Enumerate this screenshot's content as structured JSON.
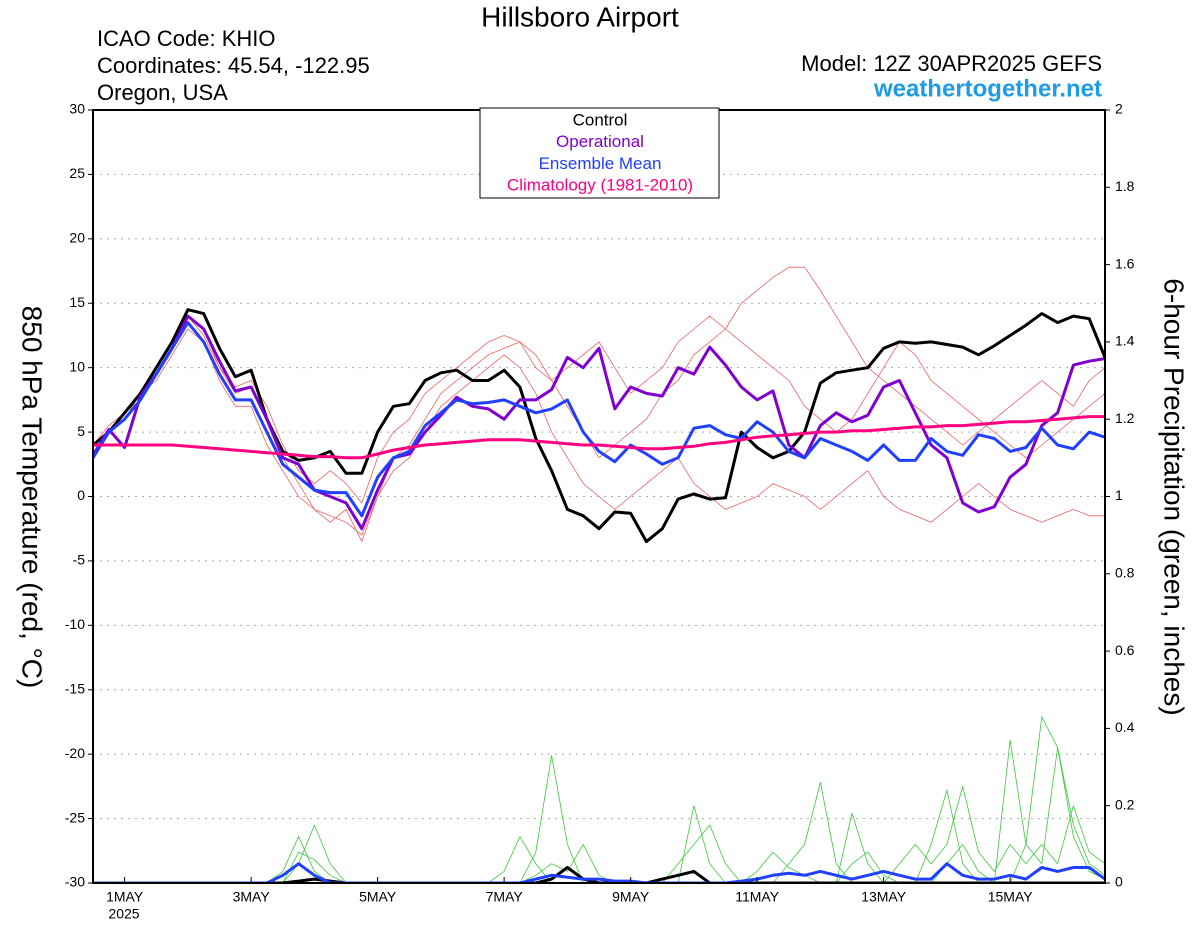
{
  "chart_data": {
    "type": "line",
    "title": "Hillsboro Airport",
    "info_lines": [
      "ICAO Code: KHIO",
      "Coordinates: 45.54, -122.95",
      "Oregon, USA"
    ],
    "model": "Model: 12Z 30APR2025 GEFS",
    "source": "weathertogether.net",
    "y_label": "850 hPa Temperature (red, °C)",
    "y2_label": "6-hour Precipitation (green, inches)",
    "x_year_label": "2025",
    "grid": true,
    "xlim": [
      0.5,
      16.5
    ],
    "xticks": [
      {
        "value": 1,
        "label": "1MAY"
      },
      {
        "value": 3,
        "label": "3MAY"
      },
      {
        "value": 5,
        "label": "5MAY"
      },
      {
        "value": 7,
        "label": "7MAY"
      },
      {
        "value": 9,
        "label": "9MAY"
      },
      {
        "value": 11,
        "label": "11MAY"
      },
      {
        "value": 13,
        "label": "13MAY"
      },
      {
        "value": 15,
        "label": "15MAY"
      }
    ],
    "ylim": [
      -30,
      30
    ],
    "yticks": [
      -30,
      -25,
      -20,
      -15,
      -10,
      -5,
      0,
      5,
      10,
      15,
      20,
      25,
      30
    ],
    "y2lim": [
      0,
      2
    ],
    "y2ticks": [
      0,
      0.2,
      0.4,
      0.6,
      0.8,
      1,
      1.2,
      1.4,
      1.6,
      1.8,
      2
    ],
    "x": [
      0.5,
      0.75,
      1,
      1.25,
      1.5,
      1.75,
      2,
      2.25,
      2.5,
      2.75,
      3,
      3.25,
      3.5,
      3.75,
      4,
      4.25,
      4.5,
      4.75,
      5,
      5.25,
      5.5,
      5.75,
      6,
      6.25,
      6.5,
      6.75,
      7,
      7.25,
      7.5,
      7.75,
      8,
      8.25,
      8.5,
      8.75,
      9,
      9.25,
      9.5,
      9.75,
      10,
      10.25,
      10.5,
      10.75,
      11,
      11.25,
      11.5,
      11.75,
      12,
      12.25,
      12.5,
      12.75,
      13,
      13.25,
      13.5,
      13.75,
      14,
      14.25,
      14.5,
      14.75,
      15,
      15.25,
      15.5,
      15.75,
      16,
      16.25,
      16.5
    ],
    "series": [
      {
        "color": "#f06060",
        "values": [
          3,
          5,
          6.5,
          8,
          10,
          12,
          14,
          13,
          10,
          8,
          8.5,
          6,
          3,
          1,
          -1,
          -1.5,
          -2,
          -3,
          0,
          3,
          4,
          6,
          8,
          9,
          10,
          11,
          11.5,
          12,
          11,
          9,
          7,
          5,
          3,
          4,
          5,
          6,
          8,
          9,
          11,
          12,
          13,
          15,
          16,
          17,
          17.8,
          17.8,
          16,
          14,
          12,
          10,
          9,
          8,
          7,
          6,
          5,
          4,
          5,
          6,
          7,
          8,
          9,
          8,
          7,
          9,
          10
        ]
      },
      {
        "color": "#f06060",
        "values": [
          3,
          5,
          6,
          8,
          9,
          11,
          13,
          12,
          9,
          7,
          7,
          4,
          2,
          0,
          -1,
          -2,
          -1,
          -3.5,
          0,
          2,
          3,
          5,
          7,
          8,
          9,
          10,
          11,
          10,
          8,
          5,
          3,
          1,
          0,
          -1,
          0,
          1,
          2,
          3,
          1,
          0,
          -1,
          -0.5,
          0,
          1,
          0.5,
          0,
          -1,
          0,
          1,
          2,
          0,
          -1,
          -1.5,
          -2,
          -1,
          0,
          1,
          0,
          -1,
          -1.5,
          -2,
          -1.5,
          -1,
          -1.5,
          -1.5
        ]
      },
      {
        "color": "#f06060",
        "values": [
          4,
          5.5,
          6.5,
          7.5,
          9.5,
          11.5,
          14,
          12.5,
          10,
          8.5,
          9,
          7,
          4,
          2,
          1,
          2,
          1,
          -0.5,
          3,
          5,
          6,
          8,
          9,
          10,
          11,
          12,
          12.5,
          12,
          10,
          9,
          10,
          11,
          12,
          10,
          8,
          9,
          10,
          12,
          13,
          14,
          13,
          12,
          11,
          10,
          9,
          7,
          6,
          5,
          6,
          8,
          10,
          12,
          11,
          9,
          8,
          7,
          6,
          5,
          4,
          3,
          4,
          5,
          6,
          7,
          8
        ]
      },
      {
        "color": "#3cc83c",
        "axis": "y2",
        "values": [
          0,
          0,
          0,
          0,
          0,
          0,
          0,
          0,
          0,
          0,
          0,
          0,
          0.03,
          0.12,
          0.03,
          0,
          0,
          0,
          0,
          0,
          0,
          0,
          0,
          0,
          0,
          0,
          0,
          0,
          0.08,
          0.33,
          0.1,
          0,
          0,
          0,
          0,
          0,
          0,
          0,
          0,
          0,
          0,
          0,
          0,
          0,
          0.05,
          0.1,
          0.26,
          0.05,
          0,
          0,
          0,
          0,
          0,
          0.1,
          0.24,
          0.05,
          0,
          0,
          0,
          0.1,
          0.43,
          0.35,
          0.15,
          0.05,
          0.02
        ]
      },
      {
        "color": "#3cc83c",
        "axis": "y2",
        "values": [
          0,
          0,
          0,
          0,
          0,
          0,
          0,
          0,
          0,
          0,
          0,
          0,
          0,
          0.05,
          0.15,
          0.05,
          0,
          0,
          0,
          0,
          0,
          0,
          0,
          0,
          0,
          0,
          0.03,
          0.12,
          0.05,
          0,
          0,
          0,
          0,
          0,
          0,
          0,
          0,
          0.05,
          0.1,
          0.15,
          0.05,
          0,
          0,
          0,
          0,
          0,
          0,
          0,
          0.05,
          0.08,
          0.02,
          0,
          0,
          0,
          0.05,
          0.1,
          0.03,
          0,
          0.37,
          0.1,
          0.05,
          0.35,
          0.12,
          0.03,
          0.01
        ]
      },
      {
        "color": "#3cc83c",
        "axis": "y2",
        "values": [
          0,
          0,
          0,
          0,
          0,
          0,
          0,
          0,
          0,
          0,
          0,
          0,
          0,
          0.08,
          0.06,
          0.02,
          0,
          0,
          0,
          0,
          0,
          0,
          0,
          0,
          0,
          0,
          0,
          0,
          0.02,
          0.05,
          0.03,
          0.1,
          0.02,
          0,
          0,
          0,
          0,
          0,
          0.2,
          0.05,
          0,
          0,
          0.03,
          0.08,
          0.04,
          0.02,
          0,
          0,
          0.18,
          0.05,
          0,
          0.05,
          0.1,
          0.05,
          0.1,
          0.25,
          0.08,
          0.03,
          0.1,
          0.05,
          0.1,
          0.05,
          0.2,
          0.08,
          0.05
        ]
      },
      {
        "color": "#000000",
        "axis": "y2",
        "values": [
          0,
          0,
          0,
          0,
          0,
          0,
          0,
          0,
          0,
          0,
          0,
          0,
          0,
          0.005,
          0.01,
          0.005,
          0,
          0,
          0,
          0,
          0,
          0,
          0,
          0,
          0,
          0,
          0,
          0,
          0,
          0.01,
          0.04,
          0.01,
          0,
          0,
          0,
          0,
          0.01,
          0.02,
          0.03,
          0,
          0,
          0,
          0,
          0,
          0,
          0,
          0,
          0,
          0,
          0,
          0,
          0,
          0,
          0,
          0,
          0,
          0,
          0,
          0,
          0,
          0,
          0,
          0,
          0,
          0
        ]
      },
      {
        "color": "#2040ff",
        "axis": "y2",
        "values": [
          0,
          0,
          0,
          0,
          0,
          0,
          0,
          0,
          0,
          0,
          0,
          0,
          0.02,
          0.05,
          0.02,
          0,
          0,
          0,
          0,
          0,
          0,
          0,
          0,
          0,
          0,
          0,
          0,
          0,
          0.01,
          0.02,
          0.015,
          0.01,
          0.01,
          0.005,
          0.005,
          0,
          0,
          0,
          0,
          0,
          0,
          0.005,
          0.01,
          0.02,
          0.025,
          0.02,
          0.03,
          0.02,
          0.01,
          0.02,
          0.03,
          0.02,
          0.01,
          0.01,
          0.05,
          0.02,
          0.01,
          0.01,
          0.02,
          0.01,
          0.04,
          0.03,
          0.04,
          0.04,
          0.01
        ]
      },
      {
        "name": "Control",
        "color": "#000000",
        "values": [
          4,
          5,
          6.5,
          8,
          10,
          12,
          14.5,
          14.2,
          11.5,
          9.3,
          9.8,
          6,
          3.5,
          2.8,
          3,
          3.5,
          1.8,
          1.8,
          5,
          7,
          7.2,
          9,
          9.6,
          9.8,
          9,
          9,
          9.8,
          8.5,
          4.5,
          2,
          -1,
          -1.5,
          -2.5,
          -1.2,
          -1.3,
          -3.5,
          -2.5,
          -0.2,
          0.2,
          -0.2,
          -0.1,
          5,
          3.8,
          3,
          3.5,
          5,
          8.8,
          9.6,
          9.8,
          10,
          11.5,
          12,
          11.9,
          12,
          11.8,
          11.6,
          11,
          11.7,
          12.5,
          13.3,
          14.2,
          13.5,
          14,
          13.8,
          10.8
        ]
      },
      {
        "name": "Operational",
        "color": "#8000d0",
        "values": [
          3.2,
          5.2,
          3.8,
          7.8,
          9.5,
          11.5,
          14,
          13,
          10.5,
          8.2,
          8.5,
          6,
          3,
          2.5,
          0.5,
          0,
          -0.5,
          -2.5,
          0.5,
          3,
          3.3,
          5,
          6.3,
          7.7,
          7,
          6.8,
          6,
          7.5,
          7.5,
          8.3,
          10.8,
          10,
          11.5,
          6.8,
          8.5,
          8,
          7.8,
          10,
          9.5,
          11.6,
          10.2,
          8.5,
          7.5,
          8.2,
          4,
          3,
          5.5,
          6.5,
          5.8,
          6.3,
          8.5,
          9,
          6.5,
          4,
          3,
          -0.5,
          -1.2,
          -0.8,
          1.5,
          2.5,
          5.5,
          6.5,
          10.2,
          10.5,
          10.7
        ]
      },
      {
        "name": "Ensemble Mean",
        "color": "#2040ff",
        "values": [
          3,
          5,
          6,
          7.5,
          9.5,
          11.5,
          13.5,
          12,
          9.5,
          7.5,
          7.5,
          5,
          2.5,
          1.5,
          0.5,
          0.3,
          0.3,
          -1.5,
          1.5,
          3,
          3.5,
          5.5,
          6.5,
          7.5,
          7.2,
          7.3,
          7.5,
          7,
          6.5,
          6.8,
          7.5,
          5,
          3.5,
          2.7,
          4,
          3.3,
          2.5,
          3,
          5.3,
          5.5,
          4.8,
          4.5,
          5.8,
          5,
          3.5,
          3,
          4.5,
          4,
          3.5,
          2.8,
          4,
          2.8,
          2.8,
          4.5,
          3.5,
          3.2,
          4.8,
          4.5,
          3.5,
          3.8,
          5.3,
          4,
          3.7,
          5,
          4.6
        ]
      },
      {
        "name": "Climatology (1981-2010)",
        "color": "#ff0080",
        "values": [
          4,
          4,
          4,
          4,
          4,
          4,
          3.9,
          3.8,
          3.7,
          3.6,
          3.5,
          3.4,
          3.3,
          3.2,
          3.1,
          3.1,
          3.0,
          3.0,
          3.3,
          3.6,
          3.8,
          4.0,
          4.1,
          4.2,
          4.3,
          4.4,
          4.4,
          4.4,
          4.3,
          4.2,
          4.1,
          4.0,
          4.0,
          3.9,
          3.8,
          3.7,
          3.7,
          3.8,
          3.9,
          4.1,
          4.2,
          4.4,
          4.6,
          4.7,
          4.8,
          4.9,
          5.0,
          5.0,
          5.1,
          5.1,
          5.2,
          5.3,
          5.4,
          5.4,
          5.5,
          5.5,
          5.6,
          5.7,
          5.8,
          5.8,
          5.9,
          6.0,
          6.1,
          6.2,
          6.2
        ]
      }
    ]
  }
}
